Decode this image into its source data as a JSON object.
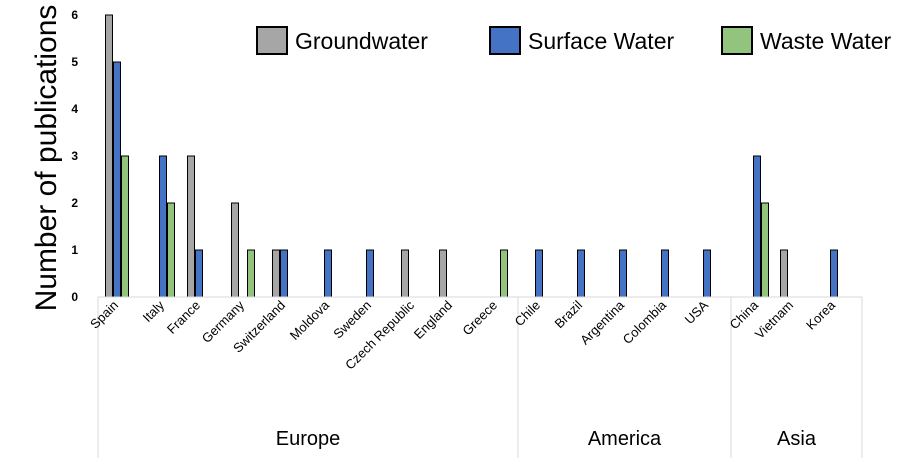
{
  "chart_data": {
    "type": "bar",
    "ylabel": "Number of publications",
    "ylim": [
      0,
      6
    ],
    "yticks": [
      0,
      1,
      2,
      3,
      4,
      5,
      6
    ],
    "grid": false,
    "legend_position": "top-right",
    "categories": [
      "Spain",
      "Italy",
      "France",
      "Germany",
      "Switzerland",
      "Moldova",
      "Sweden",
      "Czech Republic",
      "England",
      "Greece",
      "Chile",
      "Brazil",
      "Argentina",
      "Colombia",
      "USA",
      "China",
      "Vietnam",
      "Korea"
    ],
    "groups": [
      {
        "label": "Europe",
        "count": 10
      },
      {
        "label": "America",
        "count": 5
      },
      {
        "label": "Asia",
        "count": 3
      }
    ],
    "series": [
      {
        "name": "Groundwater",
        "color": "#a6a6a6",
        "values": [
          6,
          0,
          3,
          2,
          1,
          0,
          0,
          1,
          1,
          0,
          0,
          0,
          0,
          0,
          0,
          0,
          1,
          0
        ]
      },
      {
        "name": "Surface Water",
        "color": "#4472c4",
        "values": [
          5,
          3,
          1,
          0,
          1,
          1,
          1,
          0,
          0,
          0,
          1,
          1,
          1,
          1,
          1,
          3,
          0,
          1
        ]
      },
      {
        "name": "Waste Water",
        "color": "#92c47d",
        "values": [
          3,
          2,
          0,
          1,
          0,
          0,
          0,
          0,
          0,
          1,
          0,
          0,
          0,
          0,
          0,
          2,
          0,
          0
        ]
      }
    ]
  }
}
